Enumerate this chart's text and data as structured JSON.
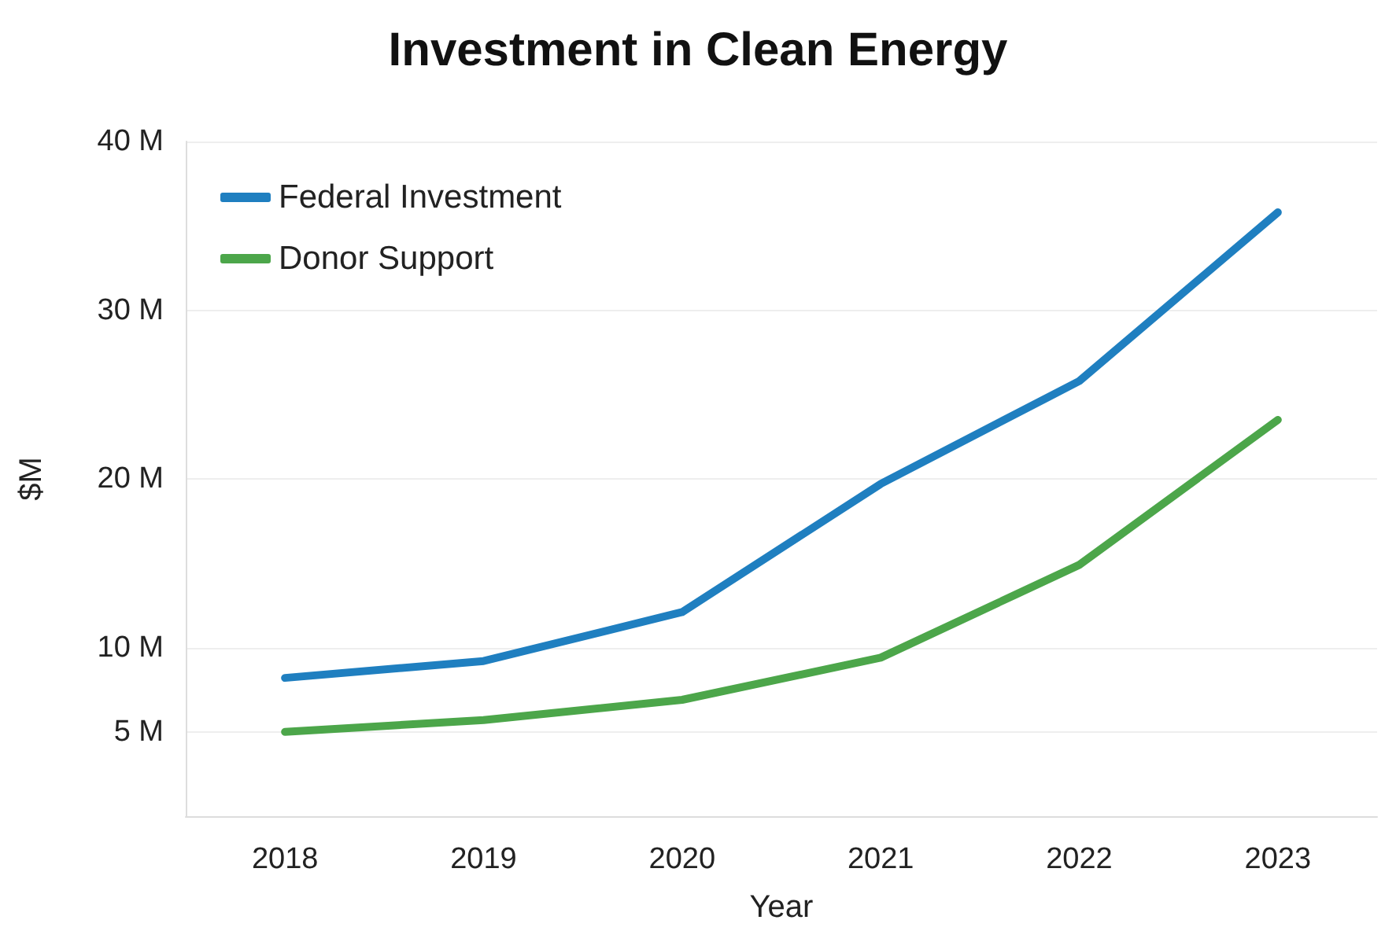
{
  "chart_data": {
    "type": "line",
    "title": "Investment in Clean Energy",
    "xlabel": "Year",
    "ylabel": "$M",
    "categories": [
      "2018",
      "2019",
      "2020",
      "2021",
      "2022",
      "2023"
    ],
    "series": [
      {
        "name": "Federal Investment",
        "color": "#1f7fc0",
        "values": [
          8.2,
          9.2,
          12.1,
          19.7,
          25.8,
          35.8
        ]
      },
      {
        "name": "Donor Support",
        "color": "#4ca64a",
        "values": [
          5.0,
          5.7,
          6.9,
          9.4,
          14.9,
          23.5
        ]
      }
    ],
    "ylim": [
      0,
      40
    ],
    "yticks": [
      {
        "value": 5,
        "label": "5 M"
      },
      {
        "value": 10,
        "label": "10 M"
      },
      {
        "value": 20,
        "label": "20 M"
      },
      {
        "value": 30,
        "label": "30 M"
      },
      {
        "value": 40,
        "label": "40 M"
      }
    ],
    "grid": "y",
    "legend": "top left",
    "marker": "none",
    "line_style": "solid"
  }
}
